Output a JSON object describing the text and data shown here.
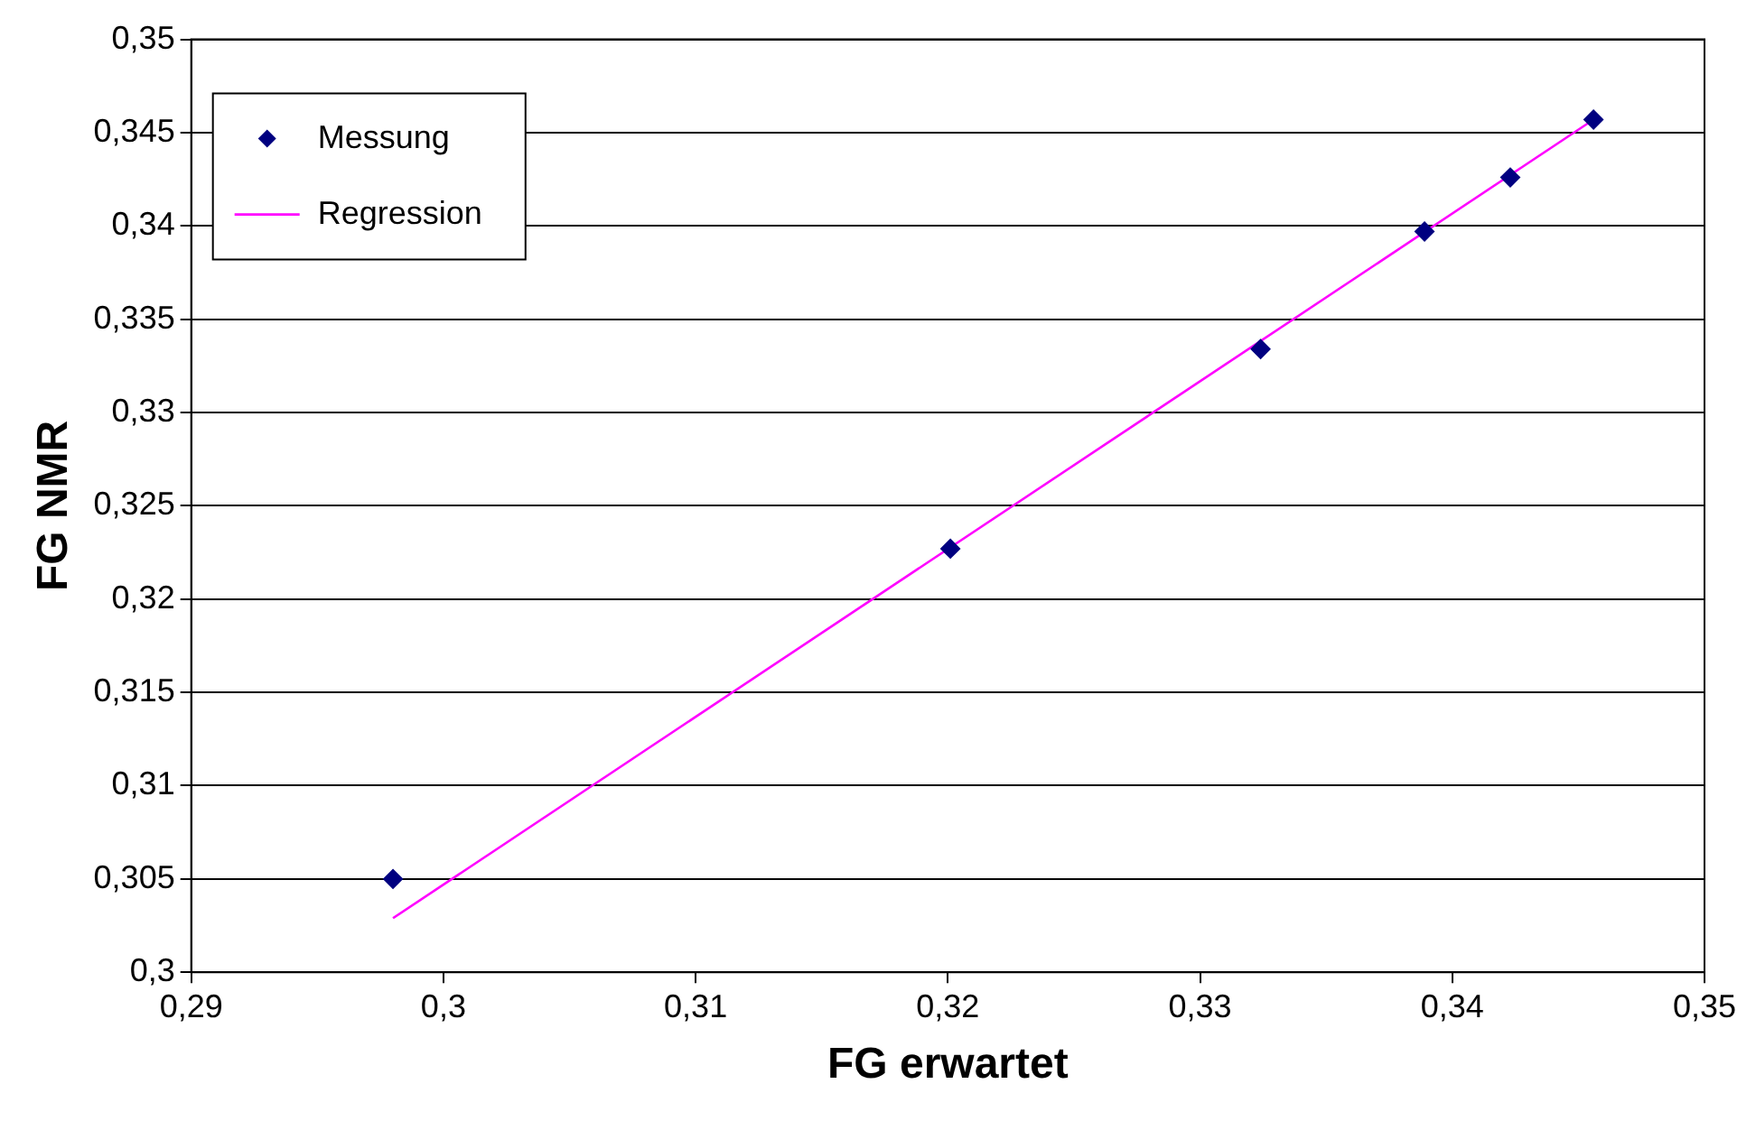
{
  "chart_data": {
    "type": "scatter",
    "xlabel": "FG erwartet",
    "ylabel": "FG NMR",
    "series": [
      {
        "name": "Messung",
        "color": "#000080",
        "marker": "diamond",
        "x": [
          0.298,
          0.3201,
          0.3324,
          0.3389,
          0.3423,
          0.3456
        ],
        "values": [
          0.305,
          0.3227,
          0.3334,
          0.3397,
          0.3426,
          0.3457
        ]
      },
      {
        "name": "Regression",
        "type": "line",
        "color": "#ff00ff",
        "marker": "none",
        "line_style": "solid",
        "x": [
          0.298,
          0.3456
        ],
        "values": [
          0.3029,
          0.3457
        ]
      }
    ],
    "xlim": [
      0.29,
      0.35
    ],
    "xticks": [
      {
        "value": 0.29,
        "label": "0,29"
      },
      {
        "value": 0.3,
        "label": "0,3"
      },
      {
        "value": 0.31,
        "label": "0,31"
      },
      {
        "value": 0.32,
        "label": "0,32"
      },
      {
        "value": 0.33,
        "label": "0,33"
      },
      {
        "value": 0.34,
        "label": "0,34"
      },
      {
        "value": 0.35,
        "label": "0,35"
      }
    ],
    "ylim": [
      0.3,
      0.35
    ],
    "yticks": [
      {
        "value": 0.3,
        "label": "0,3"
      },
      {
        "value": 0.305,
        "label": "0,305"
      },
      {
        "value": 0.31,
        "label": "0,31"
      },
      {
        "value": 0.315,
        "label": "0,315"
      },
      {
        "value": 0.32,
        "label": "0,32"
      },
      {
        "value": 0.325,
        "label": "0,325"
      },
      {
        "value": 0.33,
        "label": "0,33"
      },
      {
        "value": 0.335,
        "label": "0,335"
      },
      {
        "value": 0.34,
        "label": "0,34"
      },
      {
        "value": 0.345,
        "label": "0,345"
      },
      {
        "value": 0.35,
        "label": "0,35"
      }
    ],
    "grid": "y",
    "legend": "top left"
  }
}
